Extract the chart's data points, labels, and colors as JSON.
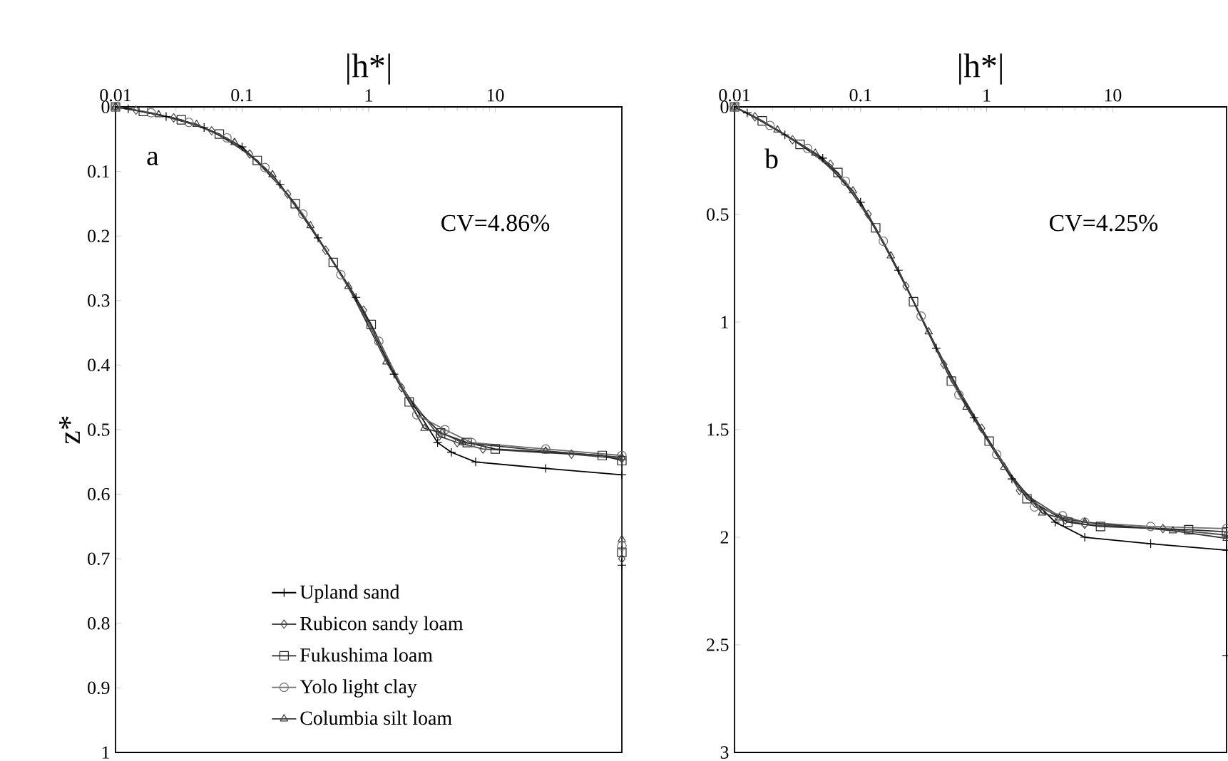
{
  "chart_data": [
    {
      "type": "line",
      "xlabel": "|h*|",
      "ylabel": "z*",
      "log": "x",
      "xlim": [
        0.01,
        100
      ],
      "xticks": [
        0.01,
        0.1,
        1,
        10
      ],
      "ylim": [
        1,
        0
      ],
      "yticks": [
        0,
        0.1,
        0.2,
        0.3,
        0.4,
        0.5,
        0.6,
        0.7,
        0.8,
        0.9,
        1
      ],
      "legend": "bottom",
      "annotations": [
        "a",
        "CV=4.86%"
      ],
      "series": [
        {
          "name": "Upland sand",
          "color": "#000000",
          "marker": "cross",
          "x": [
            0.01,
            0.0126,
            0.0251,
            0.0501,
            0.1,
            0.1995,
            0.3981,
            0.7943,
            1.585,
            3.5,
            4.5,
            7,
            25,
            100,
            100
          ],
          "values": [
            0,
            0.003,
            0.015,
            0.032,
            0.062,
            0.12,
            0.203,
            0.295,
            0.414,
            0.52,
            0.535,
            0.55,
            0.56,
            0.57,
            0.71
          ]
        },
        {
          "name": "Rubicon sandy loam",
          "color": "#4a4a4a",
          "marker": "diamond",
          "x": [
            0.01,
            0.0145,
            0.0288,
            0.0575,
            0.1148,
            0.2291,
            0.4571,
            0.912,
            1.82,
            3.6,
            5,
            8,
            40,
            100,
            100
          ],
          "values": [
            0,
            0.005,
            0.017,
            0.037,
            0.073,
            0.135,
            0.222,
            0.315,
            0.435,
            0.51,
            0.52,
            0.53,
            0.538,
            0.545,
            0.7
          ]
        },
        {
          "name": "Fukushima loam",
          "color": "#262626",
          "marker": "square",
          "x": [
            0.01,
            0.0166,
            0.0331,
            0.0661,
            0.1318,
            0.263,
            0.5248,
            1.047,
            2.089,
            3.7,
            6,
            10,
            70,
            100,
            100
          ],
          "values": [
            0,
            0.007,
            0.02,
            0.042,
            0.083,
            0.15,
            0.241,
            0.337,
            0.457,
            0.505,
            0.52,
            0.53,
            0.54,
            0.548,
            0.69
          ]
        },
        {
          "name": "Yolo light clay",
          "color": "#6e6e6e",
          "marker": "circle",
          "x": [
            0.01,
            0.0191,
            0.038,
            0.0759,
            0.1514,
            0.302,
            0.6026,
            1.202,
            2.399,
            4,
            6.5,
            25,
            100,
            100
          ],
          "values": [
            0,
            0.009,
            0.024,
            0.048,
            0.094,
            0.166,
            0.26,
            0.363,
            0.477,
            0.5,
            0.52,
            0.53,
            0.54,
            0.68
          ]
        },
        {
          "name": "Columbia silt loam",
          "color": "#383838",
          "marker": "triangle",
          "x": [
            0.01,
            0.0219,
            0.0437,
            0.0871,
            0.1738,
            0.3467,
            0.6918,
            1.38,
            2.754,
            3.8,
            5.5,
            25,
            100,
            100
          ],
          "values": [
            0,
            0.012,
            0.027,
            0.055,
            0.105,
            0.184,
            0.278,
            0.395,
            0.498,
            0.505,
            0.52,
            0.533,
            0.543,
            0.67
          ]
        }
      ]
    },
    {
      "type": "line",
      "xlabel": "|h*|",
      "log": "x",
      "xlim": [
        0.01,
        80
      ],
      "xticks": [
        0.01,
        0.1,
        1,
        10
      ],
      "ylim": [
        3,
        0
      ],
      "yticks": [
        0,
        0.5,
        1,
        1.5,
        2,
        2.5,
        3
      ],
      "annotations": [
        "b",
        "CV=4.25%"
      ],
      "series": [
        {
          "color": "#000000",
          "marker": "cross",
          "x": [
            0.01,
            0.0126,
            0.0251,
            0.0501,
            0.1,
            0.1995,
            0.3981,
            0.7943,
            1.585,
            3.5,
            6,
            20,
            80,
            80
          ],
          "values": [
            0,
            0.028,
            0.13,
            0.238,
            0.443,
            0.759,
            1.121,
            1.445,
            1.729,
            1.93,
            2.0,
            2.03,
            2.06,
            2.55
          ]
        },
        {
          "color": "#4a4a4a",
          "marker": "diamond",
          "x": [
            0.01,
            0.0145,
            0.0288,
            0.0575,
            0.1148,
            0.2291,
            0.4571,
            0.912,
            1.82,
            4.2,
            6,
            25,
            80
          ],
          "values": [
            0,
            0.046,
            0.153,
            0.267,
            0.499,
            0.833,
            1.197,
            1.494,
            1.783,
            1.92,
            1.94,
            1.96,
            1.99
          ]
        },
        {
          "color": "#262626",
          "marker": "square",
          "x": [
            0.01,
            0.0166,
            0.0331,
            0.0661,
            0.1318,
            0.263,
            0.5248,
            1.047,
            2.089,
            4.4,
            8,
            40,
            80
          ],
          "values": [
            0,
            0.065,
            0.174,
            0.305,
            0.562,
            0.905,
            1.274,
            1.553,
            1.821,
            1.93,
            1.95,
            1.965,
            1.975
          ]
        },
        {
          "color": "#6e6e6e",
          "marker": "circle",
          "x": [
            0.01,
            0.0191,
            0.038,
            0.0759,
            0.1514,
            0.302,
            0.6026,
            1.202,
            2.399,
            4,
            6,
            20,
            80
          ],
          "values": [
            0,
            0.086,
            0.193,
            0.346,
            0.624,
            0.972,
            1.338,
            1.615,
            1.859,
            1.9,
            1.93,
            1.95,
            1.96
          ]
        },
        {
          "color": "#383838",
          "marker": "triangle",
          "x": [
            0.01,
            0.0219,
            0.0437,
            0.0871,
            0.1738,
            0.3467,
            0.6918,
            1.38,
            2.754,
            3.8,
            6,
            30,
            80
          ],
          "values": [
            0,
            0.107,
            0.215,
            0.39,
            0.692,
            1.045,
            1.395,
            1.674,
            1.887,
            1.91,
            1.93,
            1.97,
            2.005
          ]
        }
      ]
    }
  ]
}
